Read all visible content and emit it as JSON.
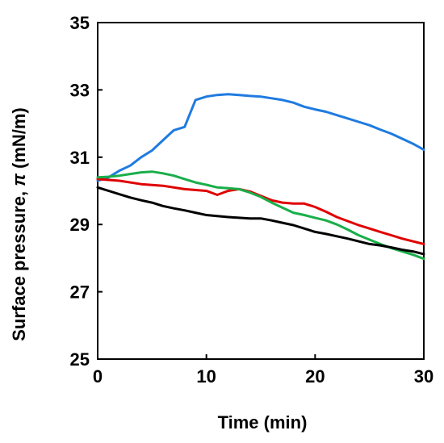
{
  "chart_data": {
    "type": "line",
    "xlabel": "Time (min)",
    "ylabel_prefix": "Surface pressure, ",
    "ylabel_symbol": "π",
    "ylabel_suffix": " (mN/m)",
    "xlim": [
      0,
      30
    ],
    "ylim": [
      25,
      35
    ],
    "xticks": [
      0,
      10,
      20,
      30
    ],
    "yticks": [
      25,
      27,
      29,
      31,
      33,
      35
    ],
    "grid": false,
    "series": [
      {
        "color": "#1f7be0",
        "x": [
          0,
          1,
          2,
          3,
          4,
          5,
          6,
          7,
          8,
          9,
          10,
          11,
          12,
          13,
          14,
          15,
          16,
          17,
          18,
          19,
          20,
          21,
          22,
          23,
          24,
          25,
          26,
          27,
          28,
          29,
          30
        ],
        "y": [
          30.3,
          30.4,
          30.6,
          30.75,
          31.0,
          31.2,
          31.5,
          31.8,
          31.9,
          32.7,
          32.8,
          32.85,
          32.87,
          32.85,
          32.82,
          32.8,
          32.75,
          32.7,
          32.62,
          32.5,
          32.42,
          32.35,
          32.25,
          32.15,
          32.05,
          31.95,
          31.82,
          31.7,
          31.55,
          31.4,
          31.22
        ]
      },
      {
        "color": "#e00000",
        "x": [
          0,
          2,
          4,
          6,
          8,
          10,
          11,
          12,
          13,
          14,
          15,
          16,
          17,
          18,
          19,
          20,
          21,
          22,
          23,
          24,
          25,
          26,
          27,
          28,
          29,
          30
        ],
        "y": [
          30.35,
          30.3,
          30.2,
          30.15,
          30.05,
          30.0,
          29.88,
          30.0,
          30.05,
          29.98,
          29.85,
          29.72,
          29.65,
          29.62,
          29.62,
          29.52,
          29.38,
          29.22,
          29.1,
          28.98,
          28.88,
          28.78,
          28.68,
          28.58,
          28.5,
          28.42
        ]
      },
      {
        "color": "#1aae4a",
        "x": [
          0,
          1,
          2,
          3,
          4,
          5,
          6,
          7,
          8,
          9,
          10,
          11,
          12,
          13,
          14,
          15,
          16,
          17,
          18,
          19,
          20,
          21,
          22,
          23,
          24,
          25,
          26,
          27,
          28,
          29,
          30
        ],
        "y": [
          30.4,
          30.42,
          30.45,
          30.5,
          30.55,
          30.57,
          30.52,
          30.45,
          30.35,
          30.25,
          30.18,
          30.1,
          30.08,
          30.05,
          29.95,
          29.82,
          29.65,
          29.5,
          29.35,
          29.28,
          29.2,
          29.12,
          29.0,
          28.85,
          28.68,
          28.55,
          28.42,
          28.3,
          28.2,
          28.1,
          27.98
        ]
      },
      {
        "color": "#000000",
        "x": [
          0,
          1,
          2,
          3,
          4,
          5,
          6,
          7,
          8,
          9,
          10,
          11,
          12,
          13,
          14,
          15,
          16,
          17,
          18,
          19,
          20,
          21,
          22,
          23,
          24,
          25,
          26,
          27,
          28,
          29,
          30
        ],
        "y": [
          30.1,
          30.0,
          29.9,
          29.8,
          29.72,
          29.65,
          29.55,
          29.48,
          29.42,
          29.35,
          29.28,
          29.25,
          29.22,
          29.2,
          29.18,
          29.18,
          29.12,
          29.05,
          28.98,
          28.88,
          28.78,
          28.72,
          28.65,
          28.58,
          28.5,
          28.42,
          28.38,
          28.32,
          28.25,
          28.2,
          28.12
        ]
      }
    ]
  }
}
